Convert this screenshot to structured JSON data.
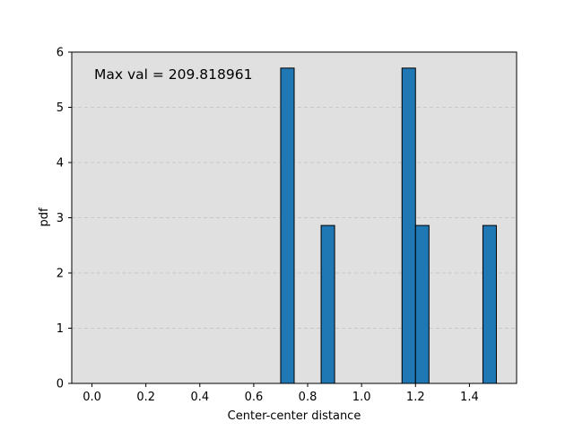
{
  "chart_data": {
    "type": "bar",
    "subtype": "histogram",
    "annotation": "Max val = 209.818961",
    "xlabel": "Center-center distance",
    "ylabel": "pdf",
    "xlim": [
      -0.075,
      1.575
    ],
    "ylim": [
      0,
      6
    ],
    "xticks": [
      "0.0",
      "0.2",
      "0.4",
      "0.6",
      "0.8",
      "1.0",
      "1.2",
      "1.4"
    ],
    "xtick_values": [
      0.0,
      0.2,
      0.4,
      0.6,
      0.8,
      1.0,
      1.2,
      1.4
    ],
    "yticks": [
      "0",
      "1",
      "2",
      "3",
      "4",
      "5",
      "6"
    ],
    "ytick_values": [
      0,
      1,
      2,
      3,
      4,
      5,
      6
    ],
    "bin_width": 0.05,
    "bins": [
      {
        "x0": 0.7,
        "x1": 0.75,
        "value": 5.71
      },
      {
        "x0": 0.85,
        "x1": 0.9,
        "value": 2.86
      },
      {
        "x0": 1.15,
        "x1": 1.2,
        "value": 5.71
      },
      {
        "x0": 1.2,
        "x1": 1.25,
        "value": 2.86
      },
      {
        "x0": 1.45,
        "x1": 1.5,
        "value": 2.86
      }
    ],
    "grid": "horizontal-dashed",
    "colors": {
      "background": "#e0e0e0",
      "bar": "#1f77b4",
      "edge": "#000000",
      "grid": "#c8c8c8"
    }
  }
}
